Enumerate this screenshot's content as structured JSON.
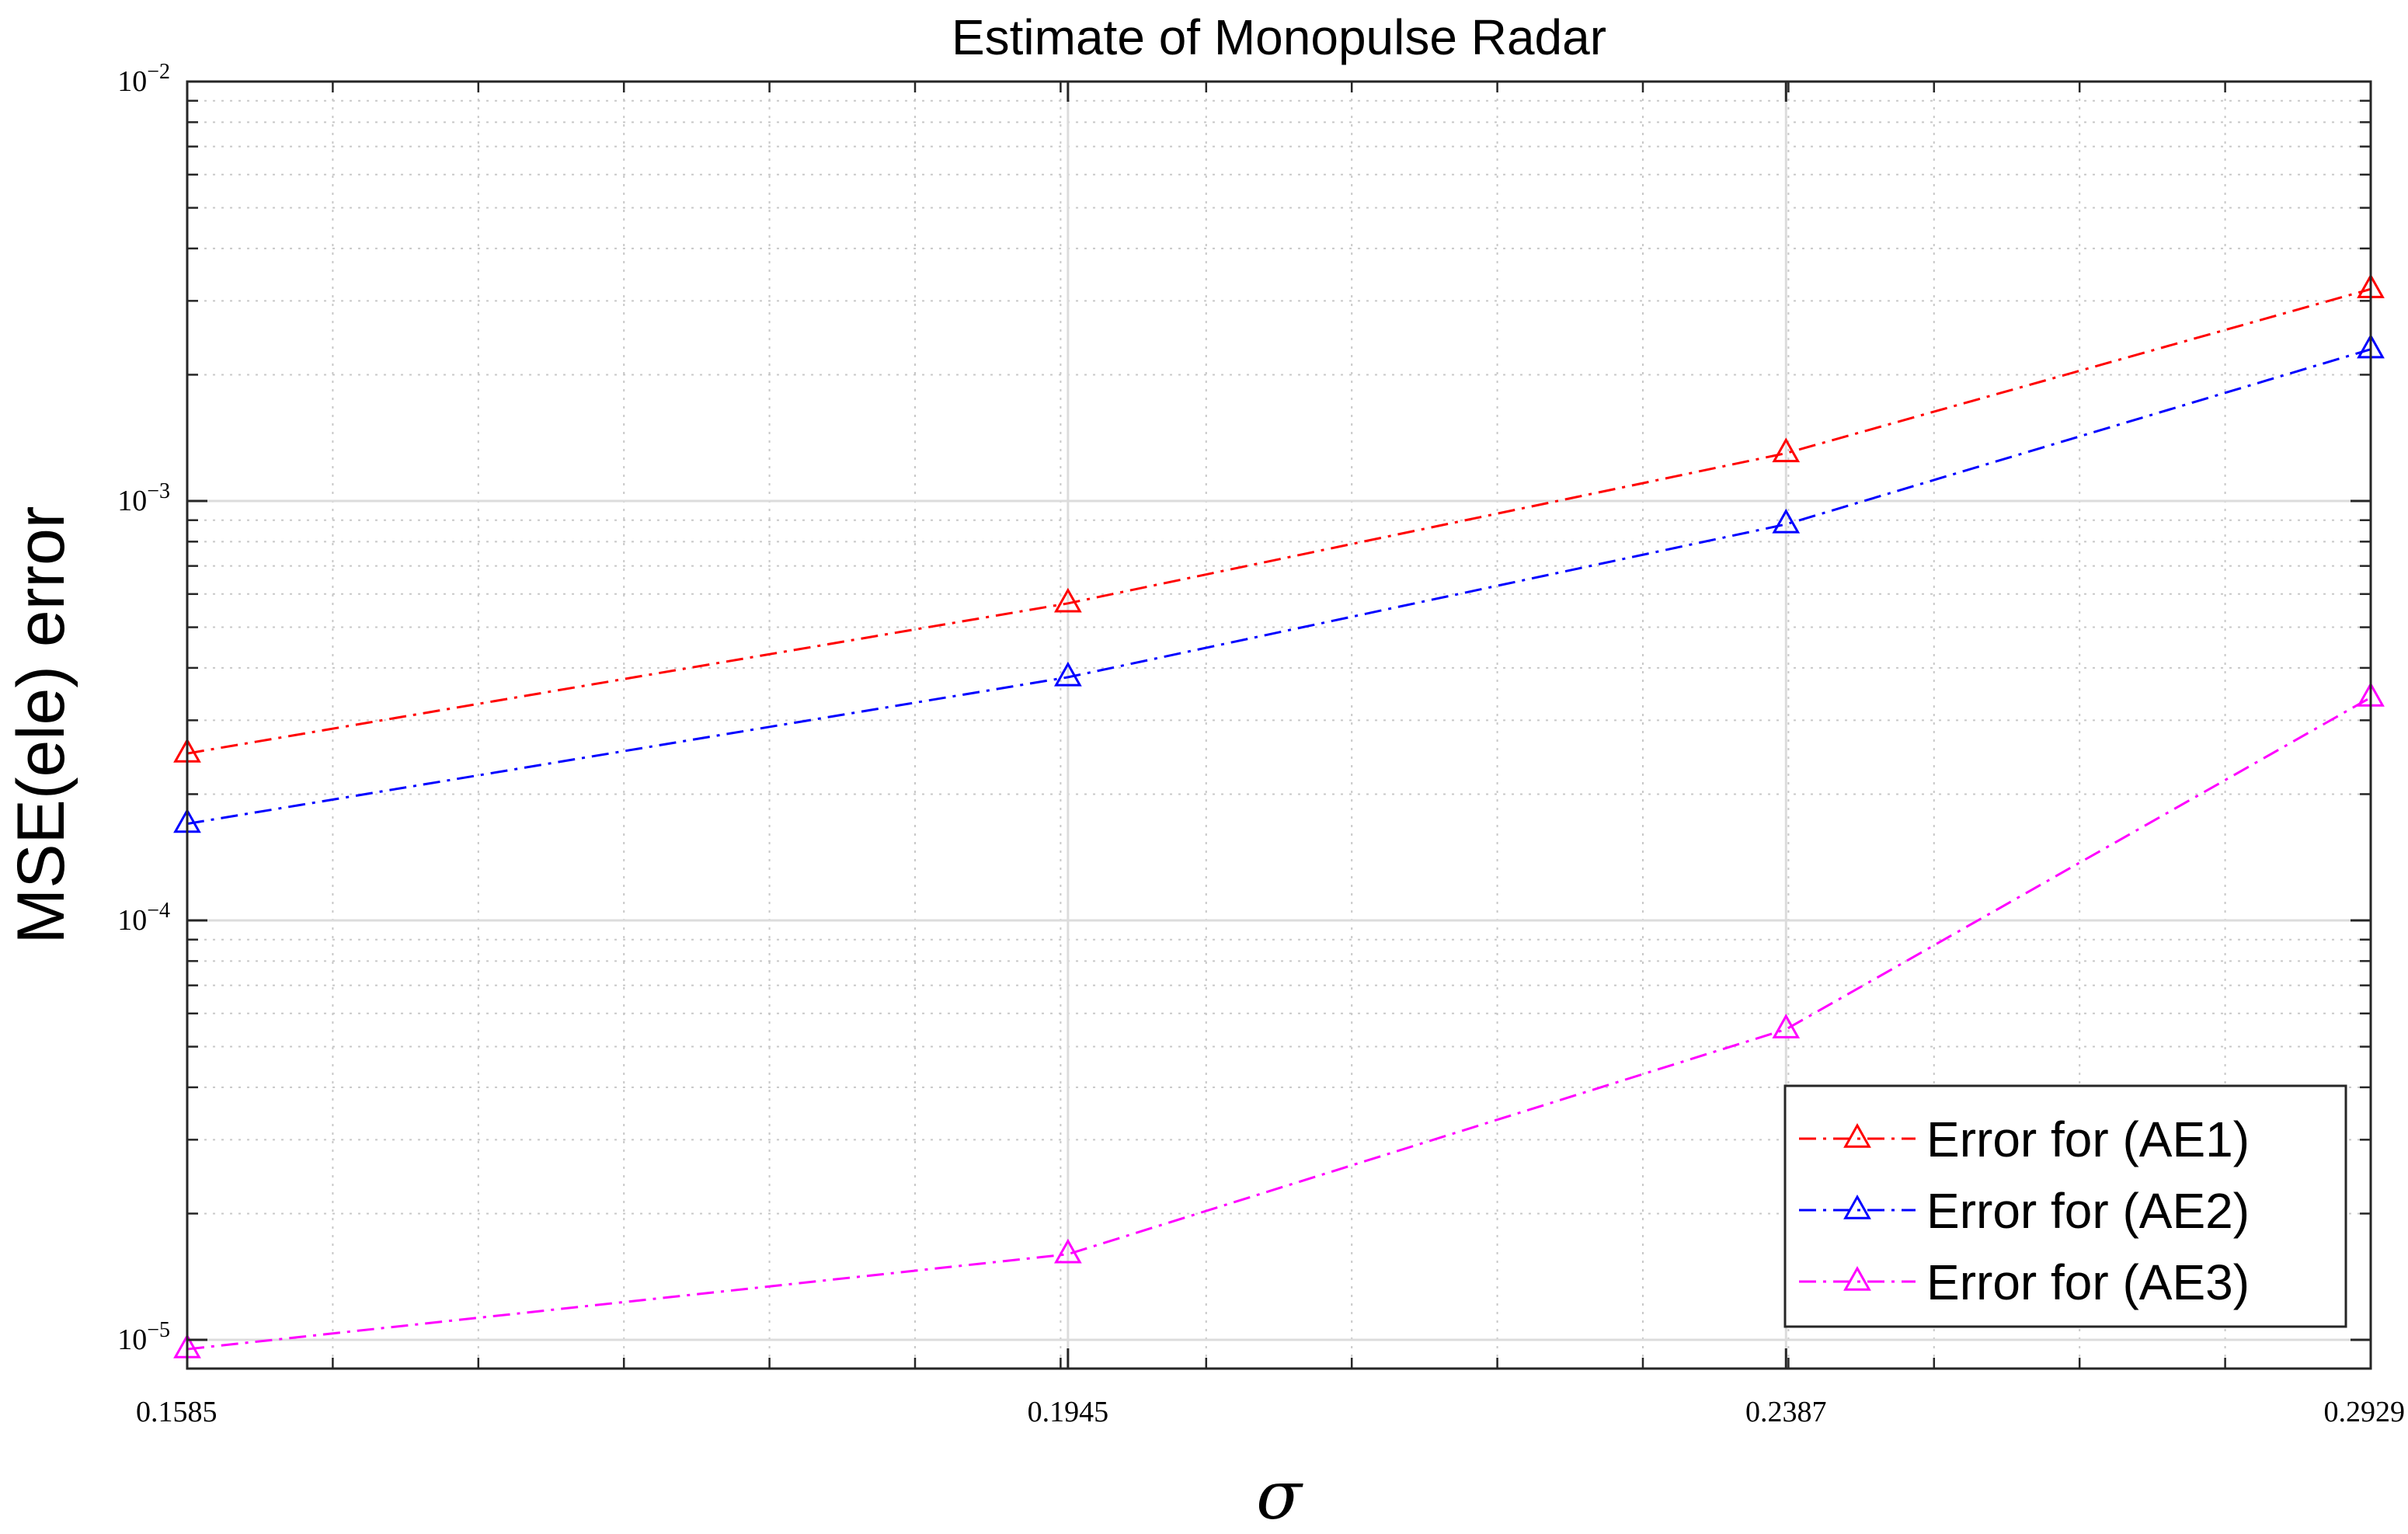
{
  "chart_data": {
    "type": "line",
    "title": "Estimate of Monopulse Radar",
    "xlabel": "σ",
    "ylabel": "MSE(ele) error",
    "x_scale": "reciprocal",
    "y_scale": "log",
    "x_ticks": [
      "0.1585",
      "0.1945",
      "0.2387",
      "0.2929"
    ],
    "y_ticks": [
      {
        "base": "10",
        "exp": "−2",
        "value": 0.01
      },
      {
        "base": "10",
        "exp": "−3",
        "value": 0.001
      },
      {
        "base": "10",
        "exp": "−4",
        "value": 0.0001
      },
      {
        "base": "10",
        "exp": "−5",
        "value": 1e-05
      }
    ],
    "ylim": [
      9.5e-06,
      0.01
    ],
    "grid": true,
    "legend_position": "bottom-right",
    "x": [
      0.1585,
      0.1945,
      0.2387,
      0.2929
    ],
    "series": [
      {
        "name": "Error for (AE1)",
        "color": "#ff0000",
        "marker": "triangle-up",
        "line_style": "dash-dot",
        "values": [
          0.00025,
          0.00057,
          0.0013,
          0.0032
        ]
      },
      {
        "name": "Error for (AE2)",
        "color": "#0000ff",
        "marker": "triangle-up",
        "line_style": "dash-dot",
        "values": [
          0.00017,
          0.00038,
          0.00088,
          0.0023
        ]
      },
      {
        "name": "Error for (AE3)",
        "color": "#ff00ff",
        "marker": "triangle-up",
        "line_style": "dash-dot",
        "values": [
          9.5e-06,
          1.6e-05,
          5.5e-05,
          0.00034
        ]
      }
    ]
  }
}
